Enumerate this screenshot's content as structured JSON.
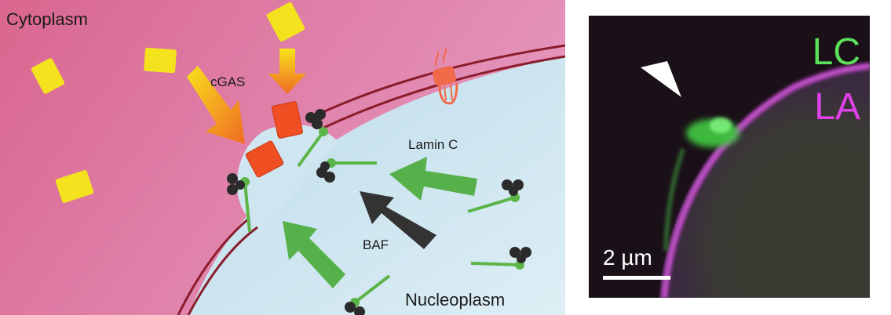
{
  "diagram": {
    "labels": {
      "cytoplasm": "Cytoplasm",
      "cgas": "cGAS",
      "lamin_c": "Lamin C",
      "baf": "BAF",
      "nucleoplasm": "Nucleoplasm"
    },
    "colors": {
      "cytoplasm": "#dd7fa8",
      "nucleus": "#cfe6f0",
      "envelope": "#8a1c2c",
      "lamin": "#5cb548",
      "baf": "#333333",
      "cgas": "#f04e23",
      "dna": "#f5e21e"
    }
  },
  "micrograph": {
    "channel_1": "LC",
    "channel_2": "LA",
    "scale_bar": "2 µm",
    "colors": {
      "background": "#1a1018",
      "lc": "#5be05b",
      "la": "#e040e8"
    }
  }
}
